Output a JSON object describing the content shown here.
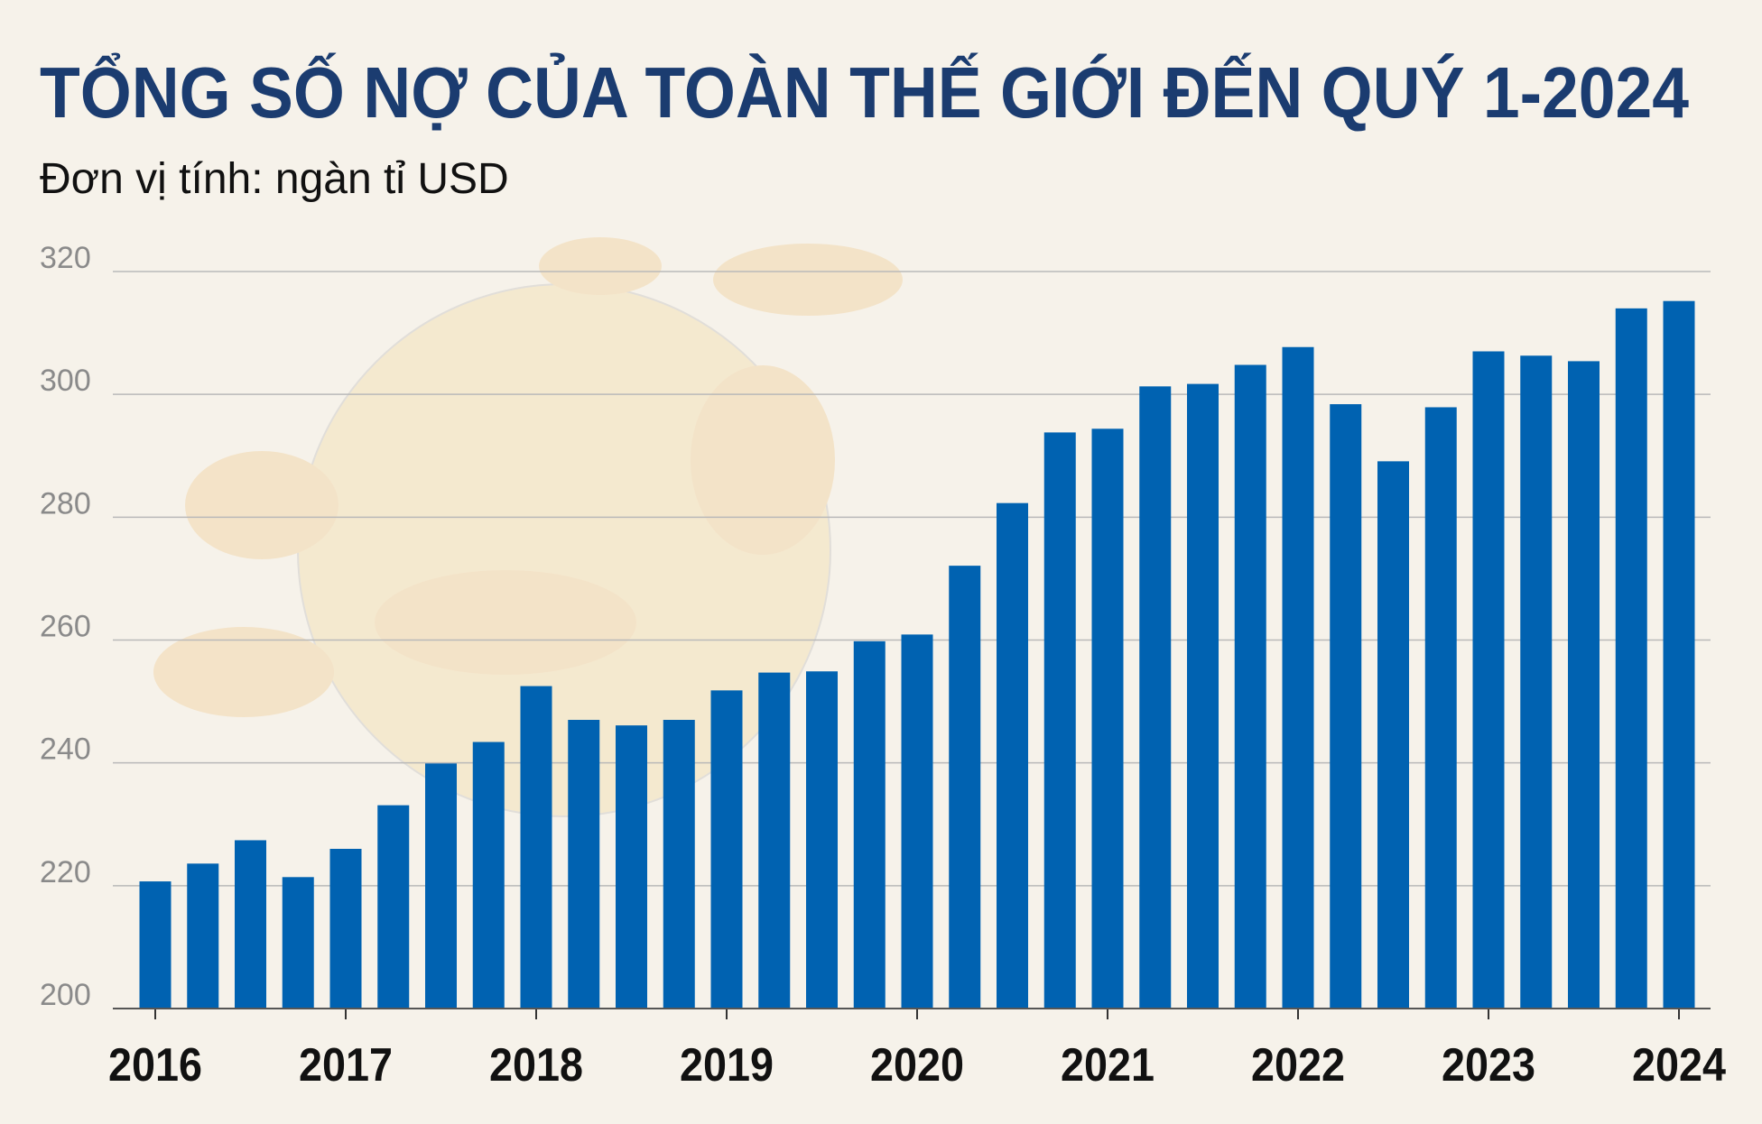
{
  "chart_data": {
    "type": "bar",
    "title": "TỔNG SỐ NỢ CỦA TOÀN THẾ GIỚI ĐẾN QUÝ 1-2024",
    "subtitle": "Đơn vị tính: ngàn tỉ USD",
    "categories": [
      "2016",
      null,
      null,
      null,
      "2017",
      null,
      null,
      null,
      "2018",
      null,
      null,
      null,
      "2019",
      null,
      null,
      null,
      "2020",
      null,
      null,
      null,
      "2021",
      null,
      null,
      null,
      "2022",
      null,
      null,
      null,
      "2023",
      null,
      null,
      null,
      "2024"
    ],
    "values": [
      220.7,
      223.6,
      227.4,
      221.4,
      226,
      233.1,
      239.9,
      243.4,
      252.5,
      247,
      246.1,
      247,
      251.8,
      254.7,
      254.9,
      259.8,
      260.9,
      272.1,
      282.3,
      293.8,
      294.4,
      301.3,
      301.7,
      304.8,
      307.7,
      298.4,
      289.1,
      297.9,
      307,
      306.3,
      305.4,
      314,
      315.2
    ],
    "color": "#0062b1",
    "ylim": [
      200,
      320
    ],
    "yticks": [
      200,
      220,
      240,
      260,
      280,
      300,
      320
    ],
    "grid": true
  }
}
